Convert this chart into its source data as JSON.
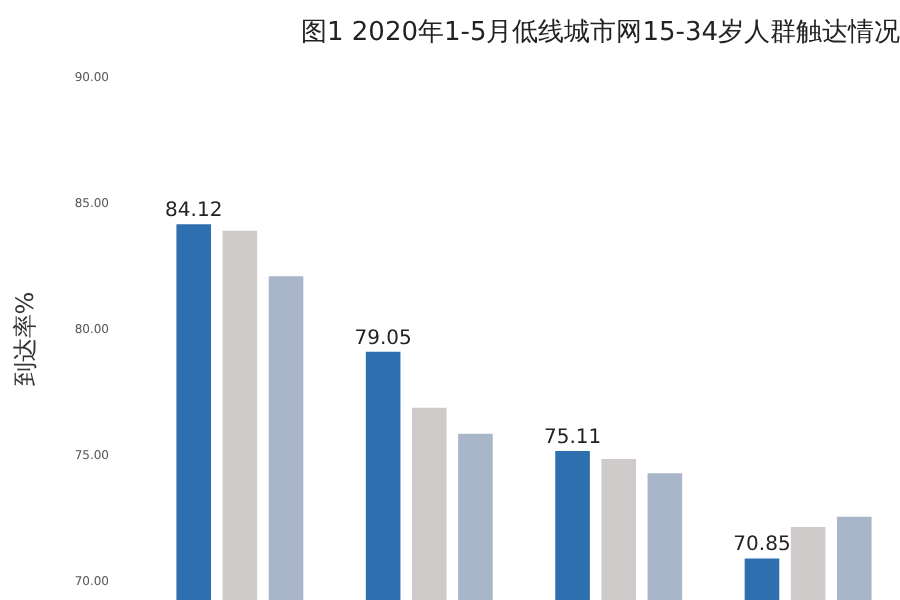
{
  "chart_data": {
    "type": "bar",
    "title": "图1  2020年1-5月低线城市网15-34岁人群触达情况",
    "ylabel": "到达率%",
    "categories": [
      null,
      null,
      null,
      null
    ],
    "series": [
      {
        "color": "#2e6fb0",
        "values": [
          84.12,
          79.05,
          75.11,
          70.85
        ],
        "value_labels": [
          "84.12",
          "79.05",
          "75.11",
          "70.85"
        ]
      },
      {
        "color": "#cfcbcb",
        "values": [
          83.86,
          76.83,
          74.8,
          72.1
        ]
      },
      {
        "color": "#a9b5c9",
        "values": [
          82.05,
          75.8,
          74.23,
          72.5
        ]
      }
    ],
    "ylim": [
      69.2,
      90
    ],
    "yticks": [
      {
        "value": 70,
        "label": "70.00"
      },
      {
        "value": 75,
        "label": "75.00"
      },
      {
        "value": 80,
        "label": "80.00"
      },
      {
        "value": 85,
        "label": "85.00"
      },
      {
        "value": 90,
        "label": "90.00"
      }
    ],
    "tick_labels": "y",
    "grid": false,
    "legend": false
  }
}
